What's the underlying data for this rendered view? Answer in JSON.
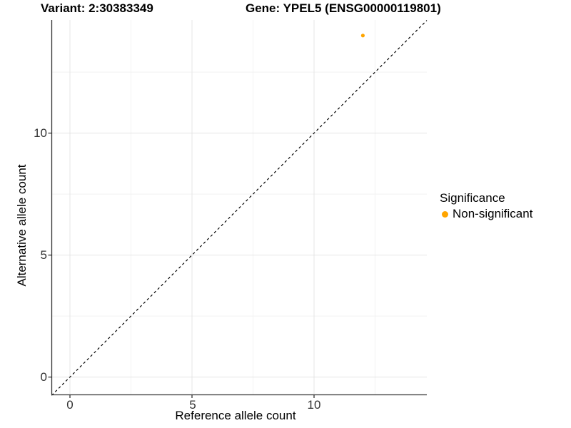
{
  "titles": {
    "variant": "Variant: 2:30383349",
    "gene": "Gene: YPEL5 (ENSG00000119801)"
  },
  "axes": {
    "x_label": "Reference allele count",
    "y_label": "Alternative allele count",
    "x_ticks": [
      "0",
      "5",
      "10"
    ],
    "y_ticks": [
      "0",
      "5",
      "10"
    ]
  },
  "legend": {
    "title": "Significance",
    "items": [
      {
        "label": "Non-significant",
        "color": "#FFA500"
      }
    ]
  },
  "chart_data": {
    "type": "scatter",
    "title": "Variant: 2:30383349",
    "subtitle": "Gene: YPEL5 (ENSG00000119801)",
    "xlabel": "Reference allele count",
    "ylabel": "Alternative allele count",
    "xlim": [
      -0.75,
      14.62
    ],
    "ylim": [
      -0.75,
      14.62
    ],
    "x_ticks": [
      0,
      5,
      10
    ],
    "y_ticks": [
      0,
      5,
      10
    ],
    "grid": true,
    "legend_position": "right",
    "legend_title": "Significance",
    "series": [
      {
        "name": "Non-significant",
        "color": "#FFA500",
        "points": [
          {
            "x": 12,
            "y": 14
          }
        ]
      }
    ],
    "reference_line": {
      "slope": 1,
      "intercept": 0,
      "style": "dashed",
      "color": "#000000"
    },
    "colors": {
      "major_grid": "#E5E5E5",
      "minor_grid": "#F2F2F2",
      "axis_line": "#333333"
    }
  }
}
